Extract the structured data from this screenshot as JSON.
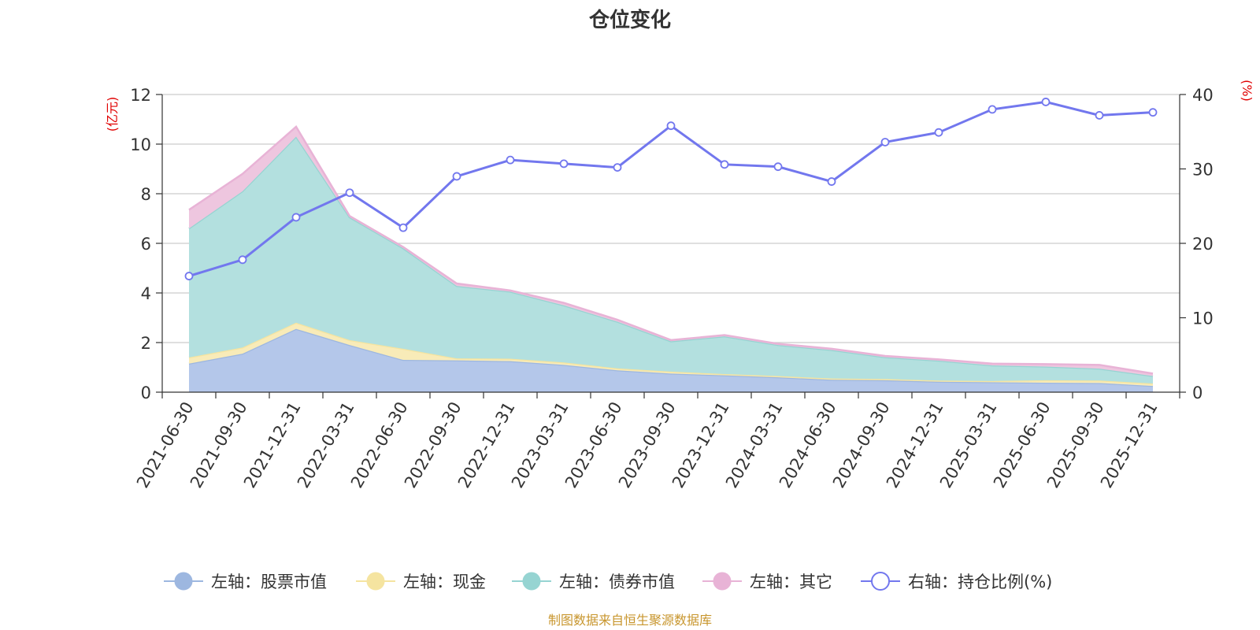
{
  "chart_data": {
    "type": "area",
    "title": "仓位变化",
    "categories": [
      "2021-06-30",
      "2021-09-30",
      "2021-12-31",
      "2022-03-31",
      "2022-06-30",
      "2022-09-30",
      "2022-12-31",
      "2023-03-31",
      "2023-06-30",
      "2023-09-30",
      "2023-12-31",
      "2024-03-31",
      "2024-06-30",
      "2024-09-30",
      "2024-12-31",
      "2025-03-31",
      "2025-06-30",
      "2025-09-30",
      "2025-12-31"
    ],
    "left_axis": {
      "unit": "(亿元)",
      "ylim": [
        0,
        12
      ],
      "ticks": [
        0,
        2,
        4,
        6,
        8,
        10,
        12
      ]
    },
    "right_axis": {
      "unit": "(%)",
      "ylim": [
        0,
        40
      ],
      "ticks": [
        0,
        10,
        20,
        30,
        40
      ]
    },
    "series": [
      {
        "name": "左轴：股票市值",
        "axis": "left",
        "stacked": true,
        "line_color": "#9db7e0",
        "fill_color": "#b4c7ea",
        "values": [
          1.15,
          1.55,
          2.55,
          1.9,
          1.3,
          1.28,
          1.25,
          1.1,
          0.88,
          0.75,
          0.68,
          0.6,
          0.5,
          0.48,
          0.42,
          0.4,
          0.38,
          0.37,
          0.25
        ]
      },
      {
        "name": "左轴：现金",
        "axis": "left",
        "stacked": true,
        "line_color": "#f5e4a0",
        "fill_color": "#f8ebb8",
        "values": [
          0.25,
          0.25,
          0.25,
          0.2,
          0.45,
          0.08,
          0.1,
          0.1,
          0.08,
          0.08,
          0.05,
          0.05,
          0.05,
          0.05,
          0.05,
          0.05,
          0.1,
          0.1,
          0.1
        ]
      },
      {
        "name": "左轴：债券市值",
        "axis": "left",
        "stacked": true,
        "line_color": "#96d4d2",
        "fill_color": "#b3e0df",
        "values": [
          5.2,
          6.3,
          7.5,
          4.95,
          4.05,
          2.92,
          2.7,
          2.3,
          1.88,
          1.22,
          1.52,
          1.25,
          1.15,
          0.88,
          0.8,
          0.63,
          0.55,
          0.48,
          0.3
        ]
      },
      {
        "name": "左轴：其它",
        "axis": "left",
        "stacked": true,
        "line_color": "#e8b3d6",
        "fill_color": "#eec6df",
        "values": [
          0.75,
          0.7,
          0.4,
          0.05,
          0.05,
          0.1,
          0.05,
          0.1,
          0.08,
          0.05,
          0.05,
          0.05,
          0.05,
          0.05,
          0.05,
          0.07,
          0.1,
          0.15,
          0.1
        ]
      },
      {
        "name": "右轴：持仓比例(%)",
        "axis": "right",
        "stacked": false,
        "line_color": "#7277ee",
        "values": [
          15.6,
          17.8,
          23.5,
          26.8,
          22.1,
          29.0,
          31.2,
          30.7,
          30.2,
          35.8,
          30.6,
          30.3,
          28.3,
          33.6,
          34.9,
          38.0,
          39.0,
          37.2,
          37.6
        ]
      }
    ],
    "legend_position": "bottom-center",
    "grid": true
  },
  "source_note": "制图数据来自恒生聚源数据库"
}
